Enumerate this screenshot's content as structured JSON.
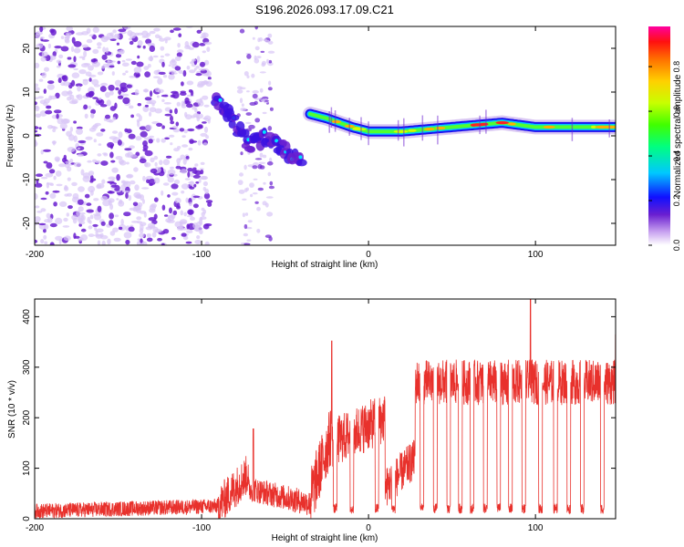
{
  "figure": {
    "title": "S196.2026.093.17.09.C21"
  },
  "colors": {
    "snr_line": "#e8312c",
    "noise_dot": "#6a1fd0",
    "noise_dot_light": "#d9c6f7"
  },
  "chart_data": [
    {
      "type": "heatmap",
      "name": "spectrogram",
      "xlabel": "Height of straight line (km)",
      "ylabel": "Frequency (Hz)",
      "xlim": [
        -200,
        148
      ],
      "ylim": [
        -25,
        25
      ],
      "xticks": [
        -200,
        -100,
        0,
        100
      ],
      "yticks": [
        -20,
        -10,
        0,
        10,
        20
      ],
      "colorbar": {
        "label": "Normalized spectral amplitude",
        "range": [
          0.0,
          0.98
        ],
        "ticks": [
          "0.0",
          "0.2",
          "0.4",
          "0.6",
          "0.8"
        ],
        "tick_values": [
          0.0,
          0.2,
          0.4,
          0.6,
          0.8
        ]
      },
      "track": {
        "noise_region_x": [
          -200,
          -95
        ],
        "descending_segment": {
          "x": [
            -92,
            -82,
            -72,
            -60,
            -48,
            -40
          ],
          "y": [
            9,
            4,
            -2,
            0,
            -4,
            -6
          ]
        },
        "stable_segment": {
          "x": [
            -35,
            -25,
            -10,
            0,
            20,
            50,
            80,
            100,
            120,
            148
          ],
          "y": [
            5,
            4,
            2,
            1,
            1,
            2,
            3,
            2,
            2,
            2
          ]
        }
      }
    },
    {
      "type": "line",
      "name": "snr",
      "xlabel": "Height of straight line (km)",
      "ylabel": "SNR (10 * v/v)",
      "xlim": [
        -200,
        148
      ],
      "ylim": [
        0,
        435
      ],
      "xticks": [
        -200,
        -100,
        0,
        100
      ],
      "yticks": [
        0,
        100,
        200,
        300,
        400
      ],
      "series": [
        {
          "name": "SNR",
          "segments": [
            {
              "x": [
                -200,
                -90
              ],
              "base": [
                15,
                25
              ],
              "jitter": 15
            },
            {
              "x": [
                -90,
                -72
              ],
              "base": [
                25,
                90
              ],
              "jitter": 40
            },
            {
              "x": [
                -72,
                -35
              ],
              "base": [
                60,
                30
              ],
              "jitter": 25
            },
            {
              "x": [
                -35,
                -22
              ],
              "base": [
                40,
                170
              ],
              "jitter": 60
            },
            {
              "x": [
                -22,
                10
              ],
              "base": [
                150,
                200
              ],
              "jitter": 50
            },
            {
              "x": [
                10,
                28
              ],
              "base": [
                60,
                120
              ],
              "jitter": 40
            },
            {
              "x": [
                28,
                148
              ],
              "base": [
                270,
                270
              ],
              "jitter": 45
            }
          ],
          "peaks": [
            {
              "x": -69,
              "y": 178
            },
            {
              "x": -22,
              "y": 352
            },
            {
              "x": 97,
              "y": 435
            },
            {
              "x": 148,
              "y": 365
            }
          ],
          "dropouts_x": [
            -20,
            -10,
            5,
            15,
            32,
            40,
            48,
            55,
            62,
            70,
            78,
            85,
            93,
            103,
            112,
            120,
            128,
            140
          ]
        }
      ]
    }
  ]
}
